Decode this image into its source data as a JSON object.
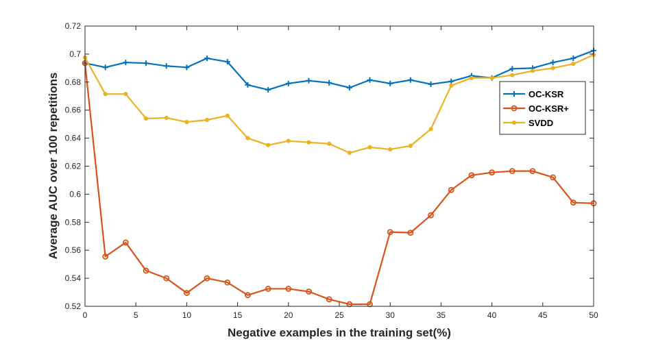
{
  "chart_data": {
    "type": "line",
    "title": "",
    "xlabel": "Negative examples in the training set(%)",
    "ylabel": "Average AUC over 100 repetitions",
    "xlim": [
      0,
      50
    ],
    "ylim": [
      0.52,
      0.72
    ],
    "x_ticks": [
      0,
      5,
      10,
      15,
      20,
      25,
      30,
      35,
      40,
      45,
      50
    ],
    "x_tick_labels": [
      "0",
      "5",
      "10",
      "15",
      "20",
      "25",
      "30",
      "35",
      "40",
      "45",
      "50"
    ],
    "y_ticks": [
      0.52,
      0.54,
      0.56,
      0.58,
      0.6,
      0.62,
      0.64,
      0.66,
      0.68,
      0.7,
      0.72
    ],
    "y_tick_labels": [
      "0.52",
      "0.54",
      "0.56",
      "0.58",
      "0.6",
      "0.62",
      "0.64",
      "0.66",
      "0.68",
      "0.7",
      "0.72"
    ],
    "grid": false,
    "legend_position": "right",
    "x": [
      0,
      2,
      4,
      6,
      8,
      10,
      12,
      14,
      16,
      18,
      20,
      22,
      24,
      26,
      28,
      30,
      32,
      34,
      36,
      38,
      40,
      42,
      44,
      46,
      48,
      50
    ],
    "series": [
      {
        "name": "OC-KSR",
        "color": "#0072BD",
        "marker": "plus",
        "values": [
          0.6935,
          0.6905,
          0.694,
          0.6935,
          0.6915,
          0.6905,
          0.697,
          0.6945,
          0.678,
          0.6745,
          0.679,
          0.681,
          0.6795,
          0.676,
          0.6815,
          0.679,
          0.6815,
          0.6785,
          0.6805,
          0.6845,
          0.683,
          0.6895,
          0.69,
          0.694,
          0.697,
          0.7025
        ]
      },
      {
        "name": "OC-KSR+",
        "color": "#D95319",
        "marker": "circle",
        "values": [
          0.6935,
          0.5555,
          0.5655,
          0.5455,
          0.54,
          0.5295,
          0.54,
          0.537,
          0.528,
          0.5325,
          0.5325,
          0.5305,
          0.525,
          0.5215,
          0.5215,
          0.573,
          0.5725,
          0.585,
          0.603,
          0.6135,
          0.6155,
          0.6165,
          0.6165,
          0.612,
          0.594,
          0.5935
        ]
      },
      {
        "name": "SVDD",
        "color": "#EDB120",
        "marker": "dot",
        "values": [
          0.6975,
          0.6715,
          0.6715,
          0.654,
          0.6545,
          0.6515,
          0.653,
          0.656,
          0.64,
          0.635,
          0.638,
          0.637,
          0.636,
          0.6295,
          0.6335,
          0.632,
          0.6345,
          0.6465,
          0.6775,
          0.683,
          0.683,
          0.685,
          0.688,
          0.69,
          0.693,
          0.6995
        ]
      }
    ]
  }
}
